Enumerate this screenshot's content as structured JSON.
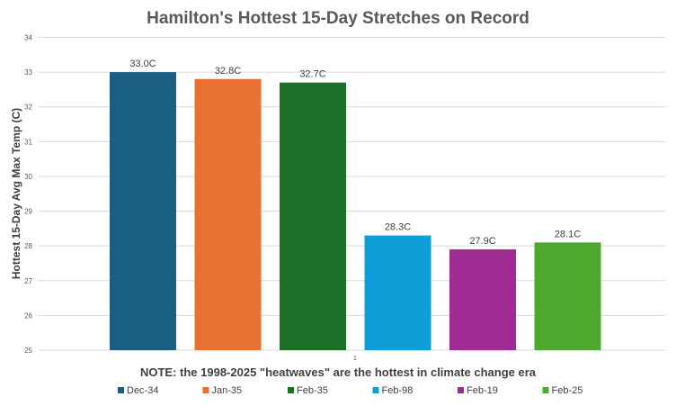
{
  "chart_data": {
    "type": "bar",
    "title": "Hamilton's Hottest 15-Day Stretches on Record",
    "xlabel": "NOTE: the 1998-2025 \"heatwaves\" are the hottest in climate change era",
    "ylabel": "Hottest 15-Day Avg Max Temp (C)",
    "ylim": [
      25,
      34
    ],
    "yticks": [
      "25",
      "26",
      "27",
      "28",
      "29",
      "30",
      "31",
      "32",
      "33",
      "34"
    ],
    "categories": [
      "1"
    ],
    "grid": true,
    "legend_position": "bottom",
    "series": [
      {
        "name": "Dec-34",
        "values": [
          33.0
        ],
        "label": "33.0C",
        "color": "#1a5e82"
      },
      {
        "name": "Jan-35",
        "values": [
          32.8
        ],
        "label": "32.8C",
        "color": "#e97132"
      },
      {
        "name": "Feb-35",
        "values": [
          32.7
        ],
        "label": "32.7C",
        "color": "#1c7028"
      },
      {
        "name": "Feb-98",
        "values": [
          28.3
        ],
        "label": "28.3C",
        "color": "#0f9ed5"
      },
      {
        "name": "Feb-19",
        "values": [
          27.9
        ],
        "label": "27.9C",
        "color": "#a02b93"
      },
      {
        "name": "Feb-25",
        "values": [
          28.1
        ],
        "label": "28.1C",
        "color": "#4ea72e"
      }
    ]
  }
}
